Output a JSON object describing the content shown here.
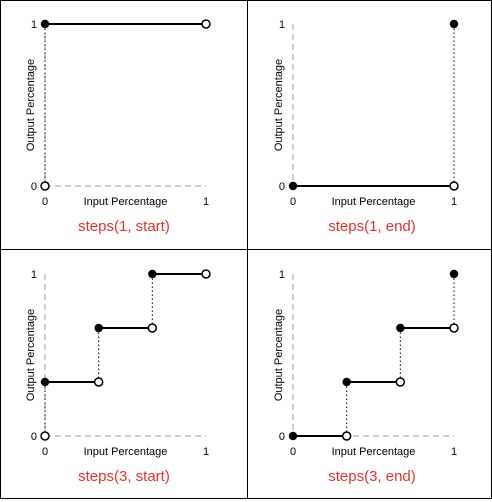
{
  "axis": {
    "x_label": "Input Percentage",
    "y_label": "Output Percentage",
    "x_tick_min": "0",
    "x_tick_max": "1",
    "y_tick_min": "0",
    "y_tick_max": "1"
  },
  "colors": {
    "caption": "#e8322d",
    "line": "#000000",
    "border": "#000000"
  },
  "panels": [
    {
      "caption": "steps(1, start)",
      "steps": 1,
      "position": "start"
    },
    {
      "caption": "steps(1, end)",
      "steps": 1,
      "position": "end"
    },
    {
      "caption": "steps(3, start)",
      "steps": 3,
      "position": "start"
    },
    {
      "caption": "steps(3, end)",
      "steps": 3,
      "position": "end"
    }
  ]
}
